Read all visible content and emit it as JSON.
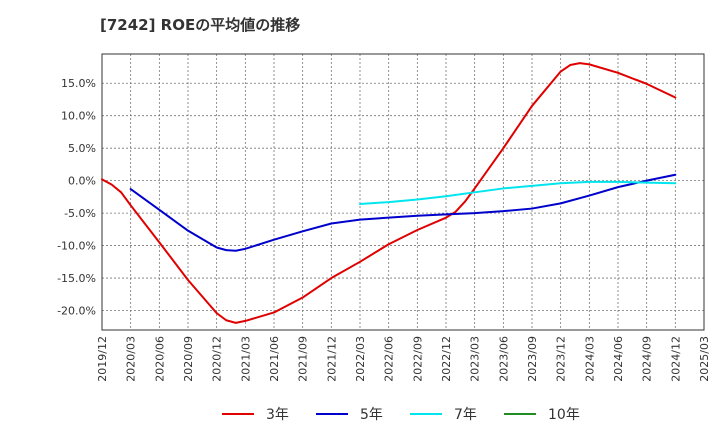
{
  "chart_data": {
    "type": "line",
    "title": "[7242]  ROEの平均値の推移",
    "ylim": [
      -23,
      19.5
    ],
    "y_ticks": [
      15,
      10,
      5,
      0,
      -5,
      -10,
      -15,
      -20
    ],
    "y_tick_labels": [
      "15.0%",
      "10.0%",
      "5.0%",
      "0.0%",
      "-5.0%",
      "-10.0%",
      "-15.0%",
      "-20.0%"
    ],
    "x_tick_labels": [
      "2019/12",
      "2020/03",
      "2020/06",
      "2020/09",
      "2020/12",
      "2021/03",
      "2021/06",
      "2021/09",
      "2021/12",
      "2022/03",
      "2022/06",
      "2022/09",
      "2022/12",
      "2023/03",
      "2023/06",
      "2023/09",
      "2023/12",
      "2024/03",
      "2024/06",
      "2024/09",
      "2024/12",
      "2025/03"
    ],
    "grid": true,
    "legend_position": "bottom",
    "series": [
      {
        "name": "3年",
        "color": "#e00000",
        "points": [
          [
            "2019/12",
            0.2
          ],
          [
            "2020/01",
            -0.6
          ],
          [
            "2020/02",
            -1.8
          ],
          [
            "2020/03",
            -3.8
          ],
          [
            "2020/06",
            -9.5
          ],
          [
            "2020/09",
            -15.3
          ],
          [
            "2020/12",
            -20.4
          ],
          [
            "2021/01",
            -21.5
          ],
          [
            "2021/02",
            -21.9
          ],
          [
            "2021/03",
            -21.6
          ],
          [
            "2021/06",
            -20.3
          ],
          [
            "2021/09",
            -18.0
          ],
          [
            "2021/12",
            -15.0
          ],
          [
            "2022/03",
            -12.5
          ],
          [
            "2022/06",
            -9.8
          ],
          [
            "2022/09",
            -7.6
          ],
          [
            "2022/12",
            -5.7
          ],
          [
            "2023/01",
            -4.8
          ],
          [
            "2023/02",
            -3.2
          ],
          [
            "2023/03",
            -1.2
          ],
          [
            "2023/06",
            5.0
          ],
          [
            "2023/09",
            11.5
          ],
          [
            "2023/12",
            16.8
          ],
          [
            "2024/01",
            17.8
          ],
          [
            "2024/02",
            18.1
          ],
          [
            "2024/03",
            17.9
          ],
          [
            "2024/06",
            16.6
          ],
          [
            "2024/09",
            14.9
          ],
          [
            "2024/12",
            12.8
          ]
        ]
      },
      {
        "name": "5年",
        "color": "#0000cc",
        "points": [
          [
            "2020/03",
            -1.3
          ],
          [
            "2020/06",
            -4.5
          ],
          [
            "2020/09",
            -7.7
          ],
          [
            "2020/12",
            -10.3
          ],
          [
            "2021/01",
            -10.7
          ],
          [
            "2021/02",
            -10.8
          ],
          [
            "2021/03",
            -10.5
          ],
          [
            "2021/06",
            -9.1
          ],
          [
            "2021/09",
            -7.8
          ],
          [
            "2021/12",
            -6.6
          ],
          [
            "2022/03",
            -6.0
          ],
          [
            "2022/06",
            -5.7
          ],
          [
            "2022/09",
            -5.4
          ],
          [
            "2022/12",
            -5.2
          ],
          [
            "2023/03",
            -5.0
          ],
          [
            "2023/06",
            -4.7
          ],
          [
            "2023/09",
            -4.3
          ],
          [
            "2023/12",
            -3.5
          ],
          [
            "2024/03",
            -2.3
          ],
          [
            "2024/06",
            -1.0
          ],
          [
            "2024/09",
            0.0
          ],
          [
            "2024/12",
            0.9
          ]
        ]
      },
      {
        "name": "7年",
        "color": "#00e5ee",
        "points": [
          [
            "2022/03",
            -3.6
          ],
          [
            "2022/06",
            -3.3
          ],
          [
            "2022/09",
            -2.9
          ],
          [
            "2022/12",
            -2.4
          ],
          [
            "2023/03",
            -1.8
          ],
          [
            "2023/06",
            -1.2
          ],
          [
            "2023/09",
            -0.8
          ],
          [
            "2023/12",
            -0.4
          ],
          [
            "2024/03",
            -0.2
          ],
          [
            "2024/06",
            -0.2
          ],
          [
            "2024/09",
            -0.3
          ],
          [
            "2024/12",
            -0.4
          ]
        ]
      },
      {
        "name": "10年",
        "color": "#228b22",
        "points": []
      }
    ]
  }
}
